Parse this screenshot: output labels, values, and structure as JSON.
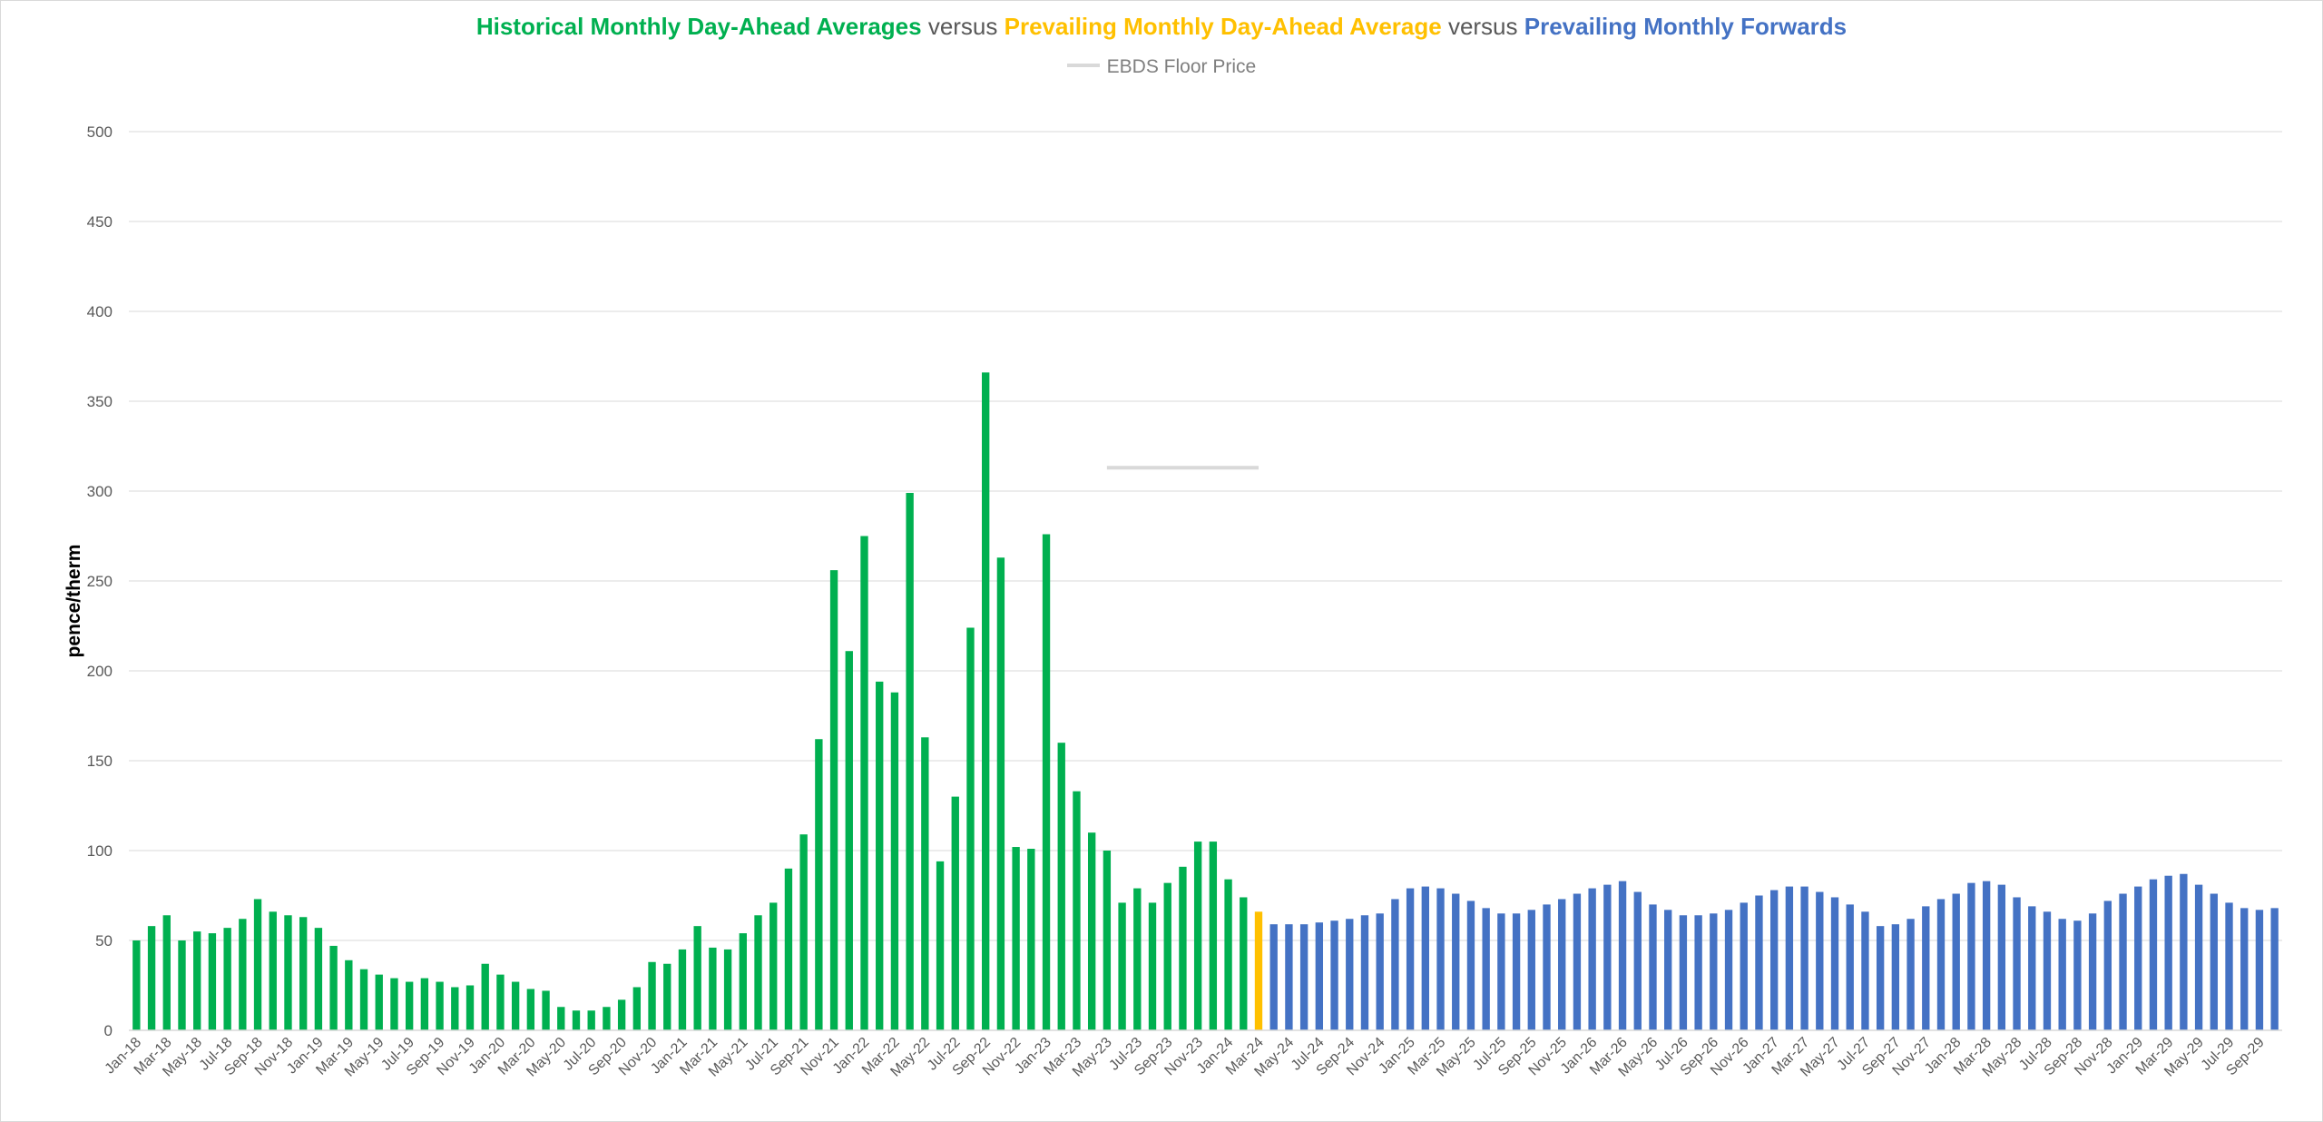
{
  "chart_data": {
    "type": "bar",
    "title_parts": [
      {
        "text": "Historical Monthly Day-Ahead Averages",
        "role": "hist"
      },
      {
        "text": " versus ",
        "role": "vs"
      },
      {
        "text": "Prevailing Monthly Day-Ahead Average",
        "role": "prev"
      },
      {
        "text": " versus ",
        "role": "vs"
      },
      {
        "text": "Prevailing Monthly Forwards",
        "role": "fwd"
      }
    ],
    "legend": [
      {
        "name": "EBDS Floor Price",
        "color": "#d9d9d9"
      }
    ],
    "ylabel": "pence/therm",
    "ylim": [
      0,
      500
    ],
    "yticks": [
      0,
      50,
      100,
      150,
      200,
      250,
      300,
      350,
      400,
      450,
      500
    ],
    "grid": true,
    "colors": {
      "hist": "#00b050",
      "prev": "#ffc000",
      "fwd": "#4472c4",
      "floor": "#d9d9d9",
      "grid": "#d9d9d9",
      "text": "#595959"
    },
    "start": {
      "year": 2018,
      "month": 1
    },
    "tick_every": 2,
    "series": [
      {
        "name": "Historical Monthly Day-Ahead Averages",
        "role": "hist",
        "values": [
          50,
          58,
          64,
          50,
          55,
          54,
          57,
          62,
          73,
          66,
          64,
          63,
          57,
          47,
          39,
          34,
          31,
          29,
          27,
          29,
          27,
          24,
          25,
          37,
          31,
          27,
          23,
          22,
          13,
          11,
          11,
          13,
          17,
          24,
          38,
          37,
          45,
          58,
          46,
          45,
          54,
          64,
          71,
          90,
          109,
          162,
          256,
          211,
          275,
          194,
          188,
          299,
          163,
          94,
          130,
          224,
          366,
          263,
          102,
          101,
          276,
          160,
          133,
          110,
          100,
          71,
          79,
          71,
          82,
          91,
          105,
          105,
          84,
          74
        ]
      },
      {
        "name": "Prevailing Monthly Day-Ahead Average",
        "role": "prev",
        "values": [
          66
        ]
      },
      {
        "name": "Prevailing Monthly Forwards",
        "role": "fwd",
        "values": [
          59,
          59,
          59,
          60,
          61,
          62,
          64,
          65,
          73,
          79,
          80,
          79,
          76,
          72,
          68,
          65,
          65,
          67,
          70,
          73,
          76,
          79,
          81,
          83,
          77,
          70,
          67,
          64,
          64,
          65,
          67,
          71,
          75,
          78,
          80,
          80,
          77,
          74,
          70,
          66,
          58,
          59,
          62,
          69,
          73,
          76,
          82,
          83,
          81,
          74,
          69,
          66,
          62,
          61,
          65,
          72,
          76,
          80,
          84,
          86,
          87,
          81,
          76,
          71,
          68,
          67,
          68
        ]
      },
      {
        "name": "EBDS Floor Price",
        "role": "floor",
        "type": "line",
        "value": 313,
        "from_index": 64,
        "to_index": 74
      }
    ]
  }
}
